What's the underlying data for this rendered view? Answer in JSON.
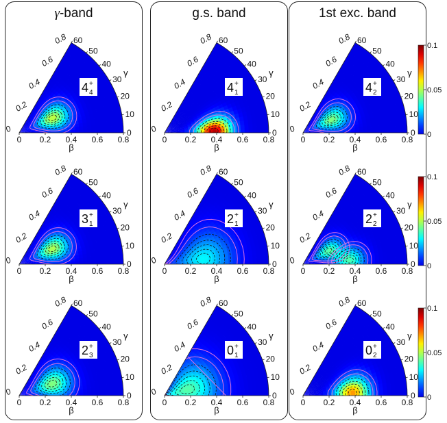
{
  "columns": [
    {
      "title_prefix": "γ",
      "title_suffix": "-band"
    },
    {
      "title_prefix": "",
      "title_suffix": "g.s. band"
    },
    {
      "title_prefix": "",
      "title_suffix": "1st exc. band"
    }
  ],
  "axis_labels": {
    "beta": "β",
    "gamma": "γ"
  },
  "colorbar": {
    "ticks": [
      "0",
      "0.05",
      "0.1"
    ],
    "min": 0,
    "max": 0.1
  },
  "chart_data": {
    "type": "heatmap",
    "coordinates": "polar (β, γ) sextant",
    "beta_ticks": [
      "0",
      "0.2",
      "0.4",
      "0.6",
      "0.8"
    ],
    "gamma_ticks": [
      "0",
      "10",
      "20",
      "30",
      "40",
      "50",
      "60"
    ],
    "beta_range": [
      0,
      0.8
    ],
    "gamma_range": [
      0,
      60
    ],
    "colorscale": "jet",
    "panels": [
      {
        "row": 0,
        "col": 0,
        "state": "4",
        "sub": "4",
        "sup": "+",
        "peaks": [
          {
            "beta": 0.28,
            "gamma": 24,
            "amp": 0.052,
            "sb": 0.09,
            "sg": 12
          }
        ]
      },
      {
        "row": 1,
        "col": 0,
        "state": "3",
        "sub": "1",
        "sup": "+",
        "peaks": [
          {
            "beta": 0.28,
            "gamma": 25,
            "amp": 0.05,
            "sb": 0.09,
            "sg": 12
          }
        ]
      },
      {
        "row": 2,
        "col": 0,
        "state": "2",
        "sub": "3",
        "sup": "+",
        "peaks": [
          {
            "beta": 0.27,
            "gamma": 20,
            "amp": 0.045,
            "sb": 0.1,
            "sg": 15
          }
        ]
      },
      {
        "row": 0,
        "col": 1,
        "state": "4",
        "sub": "1",
        "sup": "+",
        "peaks": [
          {
            "beta": 0.38,
            "gamma": 2,
            "amp": 0.095,
            "sb": 0.09,
            "sg": 10
          }
        ]
      },
      {
        "row": 1,
        "col": 1,
        "state": "2",
        "sub": "1",
        "sup": "+",
        "peaks": [
          {
            "beta": 0.3,
            "gamma": 8,
            "amp": 0.03,
            "sb": 0.15,
            "sg": 22
          }
        ]
      },
      {
        "row": 2,
        "col": 1,
        "state": "0",
        "sub": "1",
        "sup": "+",
        "peaks": [
          {
            "beta": 0.18,
            "gamma": 15,
            "amp": 0.04,
            "sb": 0.16,
            "sg": 30
          }
        ]
      },
      {
        "row": 0,
        "col": 2,
        "state": "4",
        "sub": "2",
        "sup": "+",
        "peaks": [
          {
            "beta": 0.24,
            "gamma": 25,
            "amp": 0.045,
            "sb": 0.09,
            "sg": 13
          }
        ]
      },
      {
        "row": 1,
        "col": 2,
        "state": "2",
        "sub": "2",
        "sup": "+",
        "peaks": [
          {
            "beta": 0.22,
            "gamma": 28,
            "amp": 0.04,
            "sb": 0.08,
            "sg": 12
          },
          {
            "beta": 0.36,
            "gamma": 5,
            "amp": 0.038,
            "sb": 0.08,
            "sg": 10
          }
        ]
      },
      {
        "row": 2,
        "col": 2,
        "state": "0",
        "sub": "2",
        "sup": "+",
        "peaks": [
          {
            "beta": 0.38,
            "gamma": 3,
            "amp": 0.07,
            "sb": 0.09,
            "sg": 12
          }
        ]
      }
    ]
  }
}
